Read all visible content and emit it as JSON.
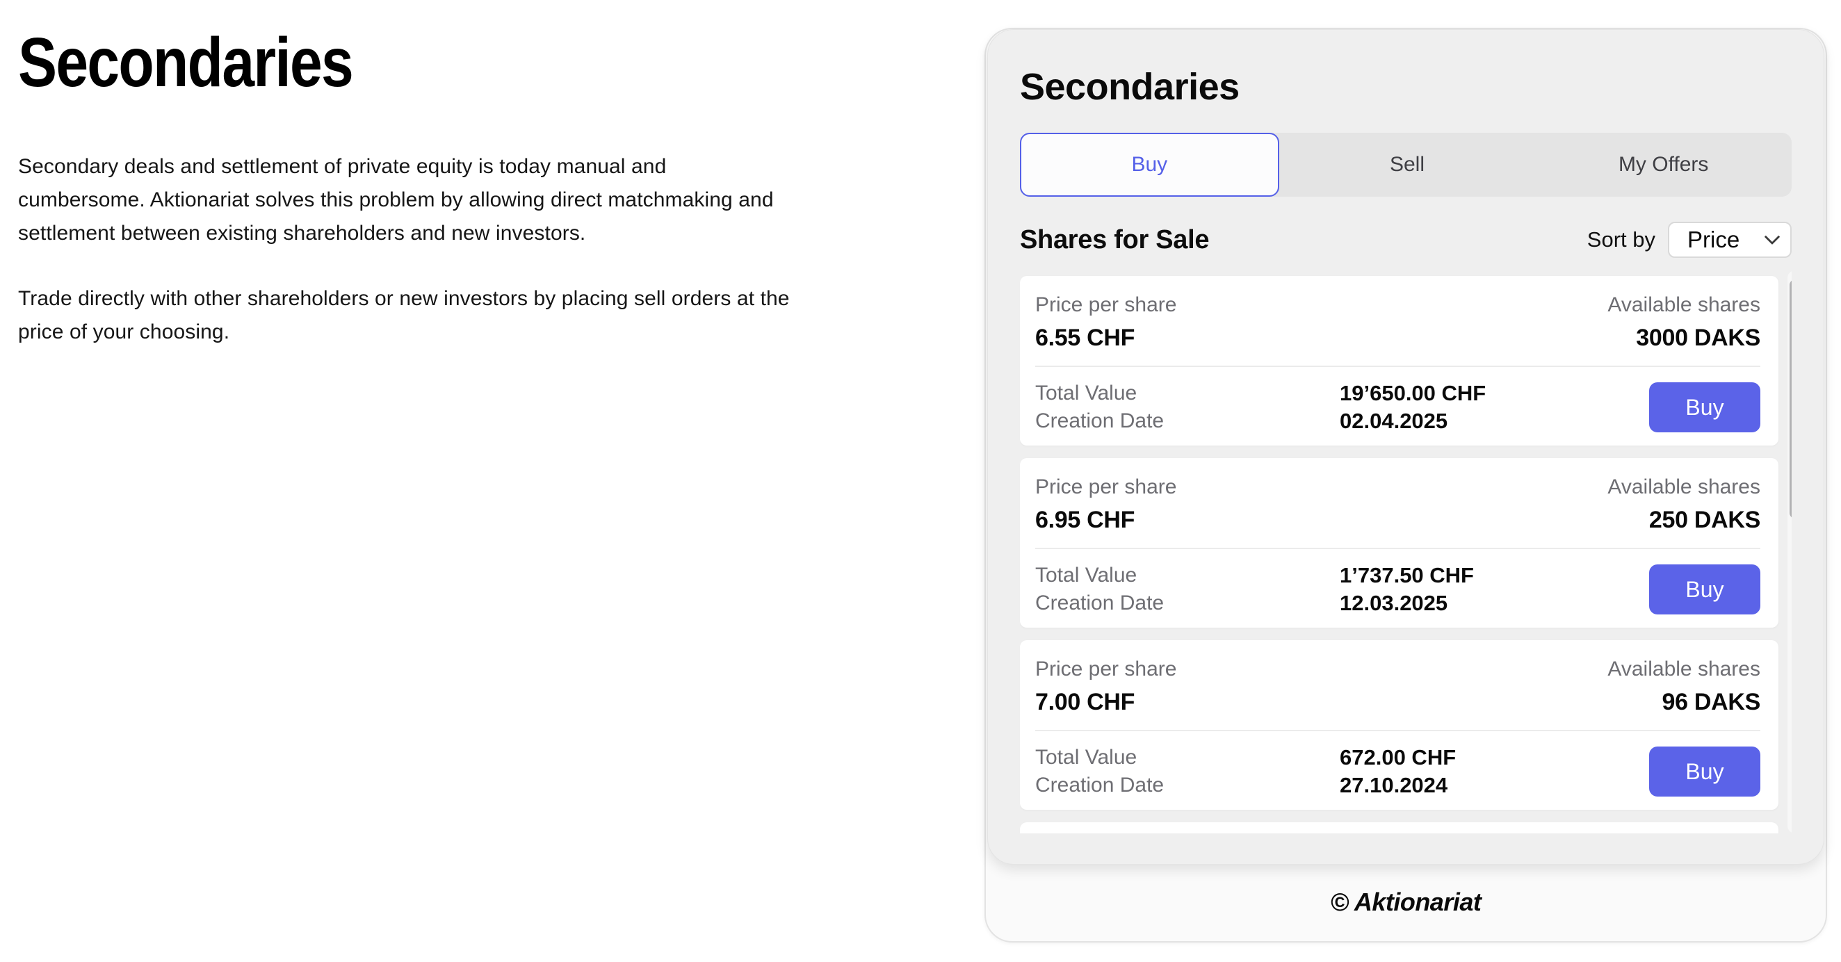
{
  "colors": {
    "accent": "#5560E8",
    "buy-blue": "#5B63E8"
  },
  "page": {
    "title": "Secondaries",
    "paragraph_1": "Secondary deals and settlement of private equity is today manual and\ncumbersome. Aktionariat solves this problem by allowing direct matchmaking and\nsettlement between existing shareholders and new investors.",
    "paragraph_2": "Trade directly with other shareholders or new investors by placing sell orders at the\nprice of your choosing."
  },
  "widget": {
    "title": "Secondaries",
    "tabs": [
      {
        "label": "Buy",
        "active": true
      },
      {
        "label": "Sell",
        "active": false
      },
      {
        "label": "My Offers",
        "active": false
      }
    ],
    "section": {
      "title": "Shares for Sale",
      "sort_label": "Sort by",
      "sort_value": "Price"
    },
    "labels": {
      "price_per_share": "Price per share",
      "available_shares": "Available shares",
      "total_value": "Total Value",
      "creation_date": "Creation Date",
      "buy": "Buy"
    },
    "offers": [
      {
        "price_per_share": "6.55 CHF",
        "available_shares": "3000 DAKS",
        "total_value": "19’650.00 CHF",
        "creation_date": "02.04.2025"
      },
      {
        "price_per_share": "6.95 CHF",
        "available_shares": "250 DAKS",
        "total_value": "1’737.50 CHF",
        "creation_date": "12.03.2025"
      },
      {
        "price_per_share": "7.00 CHF",
        "available_shares": "96 DAKS",
        "total_value": "672.00 CHF",
        "creation_date": "27.10.2024"
      }
    ],
    "footer": "© Aktionariat"
  }
}
